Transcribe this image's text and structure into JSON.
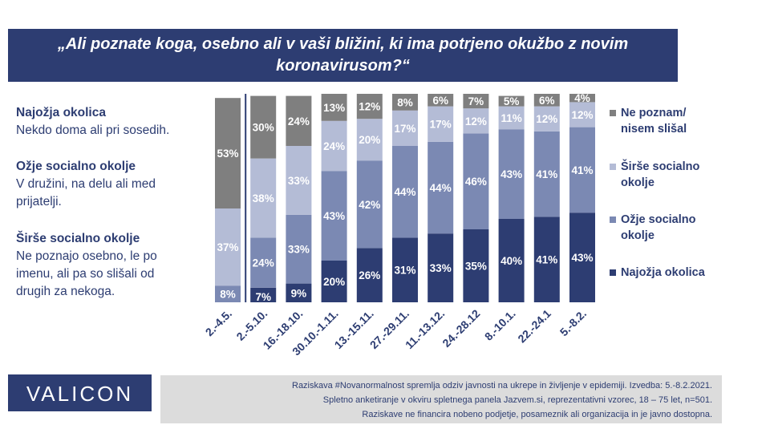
{
  "title": {
    "line1": "„Ali poznate koga, osebno ali v vaši bližini, ki ima potrjeno okužbo z novim",
    "line2": "koronavirusom?“"
  },
  "definitions": [
    {
      "term": "Najožja okolica",
      "lines": [
        "Nekdo doma ali pri sosedih."
      ]
    },
    {
      "term": "Ožje socialno okolje",
      "lines": [
        "V družini, na delu ali med",
        "prijatelji."
      ]
    },
    {
      "term": "Širše socialno okolje",
      "lines": [
        "Ne poznajo osebno, le po",
        "imenu, ali pa so slišali od",
        "drugih za nekoga."
      ]
    }
  ],
  "legend": [
    {
      "lines": [
        "Ne poznam/",
        "nisem slišal"
      ],
      "color": "#7f7f7f"
    },
    {
      "lines": [
        "Širše socialno",
        "okolje"
      ],
      "color": "#b4bcd6"
    },
    {
      "lines": [
        "Ožje socialno",
        "okolje"
      ],
      "color": "#7b89b3"
    },
    {
      "lines": [
        "Najožja okolica"
      ],
      "color": "#2d3d72"
    }
  ],
  "chart_data": {
    "type": "bar",
    "stacked": true,
    "percent_suffix": "%",
    "categories": [
      "2.-4.5.",
      "2.-5.10.",
      "16.-18.10.",
      "30.10.-1.11.",
      "13.-15.11.",
      "27.-29.11.",
      "11.-13.12.",
      "24.-28.12",
      "8.-10.1.",
      "22.-24.1",
      "5.-8.2."
    ],
    "series": [
      {
        "name": "Najožja okolica",
        "color": "#2d3d72",
        "values": [
          null,
          7,
          9,
          20,
          26,
          31,
          33,
          35,
          40,
          41,
          43
        ]
      },
      {
        "name": "Ožje socialno okolje",
        "color": "#7b89b3",
        "values": [
          8,
          24,
          33,
          43,
          42,
          44,
          44,
          46,
          43,
          41,
          41
        ]
      },
      {
        "name": "Širše socialno okolje",
        "color": "#b4bcd6",
        "values": [
          37,
          38,
          33,
          24,
          20,
          17,
          17,
          12,
          11,
          12,
          12
        ]
      },
      {
        "name": "Ne poznam/ nisem slišal",
        "color": "#7f7f7f",
        "values": [
          53,
          30,
          24,
          13,
          12,
          8,
          6,
          7,
          5,
          6,
          4
        ]
      }
    ],
    "ylim": [
      0,
      100
    ]
  },
  "logo": "VALICON",
  "footer": [
    "Raziskava #Novanormalnost spremlja odziv javnosti na ukrepe in življenje v epidemiji. Izvedba: 5.-8.2.2021.",
    "Spletno anketiranje v okviru spletnega panela Jazvem.si, reprezentativni vzorec, 18 – 75 let, n=501.",
    "Raziskave ne financira nobeno podjetje, posameznik ali organizacija in je javno dostopna."
  ]
}
